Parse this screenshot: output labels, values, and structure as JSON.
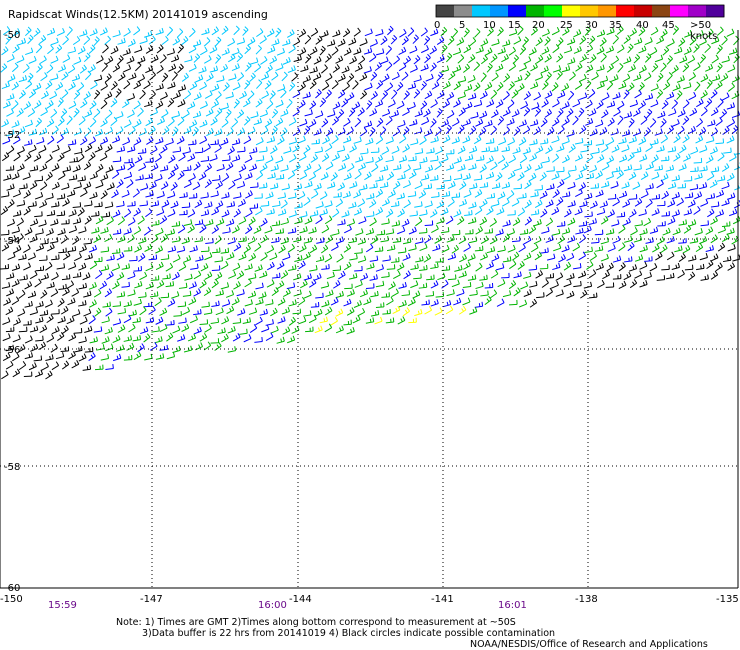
{
  "title": "Rapidscat Winds(12.5KM) 20141019 ascending",
  "colorbar": {
    "labels": [
      "0",
      "5",
      "10",
      "15",
      "20",
      "25",
      "30",
      "35",
      "40",
      "45",
      ">50 knots"
    ],
    "colors": [
      "#444444",
      "#8c8c8c",
      "#00c8ff",
      "#0096ff",
      "#0000ff",
      "#00b400",
      "#00ff00",
      "#ffff00",
      "#ffc800",
      "#ff9600",
      "#ff0000",
      "#c80000",
      "#8b4513",
      "#ff00ff",
      "#a000c8",
      "#50009b"
    ]
  },
  "lat_labels": [
    "-50",
    "-52",
    "-54",
    "-56",
    "-58",
    "-60"
  ],
  "lon_labels": [
    "-150",
    "-147",
    "-144",
    "-141",
    "-138",
    "-135"
  ],
  "time_labels": [
    "15:59",
    "16:00",
    "16:01"
  ],
  "notes": {
    "line1": "Note: 1) Times are GMT 2)Times along bottom correspond to measurement at ~50S",
    "line2": "3)Data buffer is 22 hrs from 20141019 4) Black circles indicate possible contamination",
    "credit": "NOAA/NESDIS/Office of Research and Applications"
  },
  "legend_colors": {
    "calm": "#000000",
    "light": "#00c8ff",
    "moderate": "#0000ff",
    "strong": "#00b400",
    "gale": "#ffff00"
  }
}
